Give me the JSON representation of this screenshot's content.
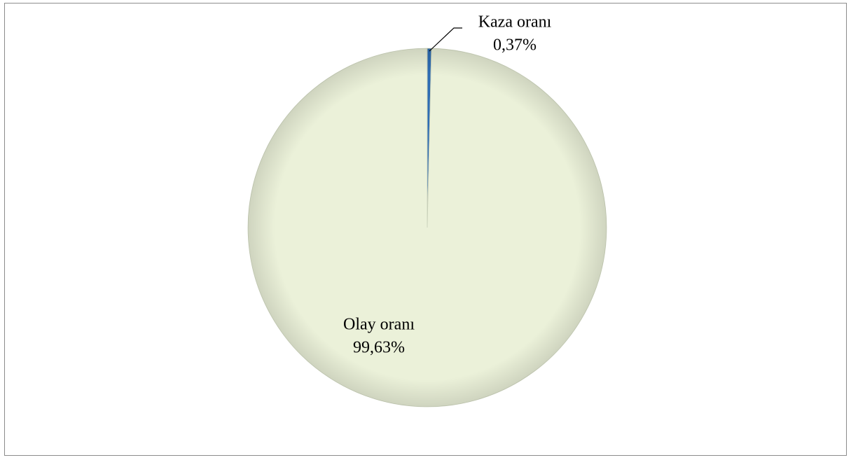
{
  "chart_data": {
    "type": "pie",
    "categories": [
      "Kaza oranı",
      "Olay oranı"
    ],
    "values": [
      0.37,
      99.63
    ],
    "value_labels": [
      "0,37%",
      "99,63%"
    ],
    "colors": [
      "#2e6db4",
      "#ebf1d9"
    ]
  }
}
